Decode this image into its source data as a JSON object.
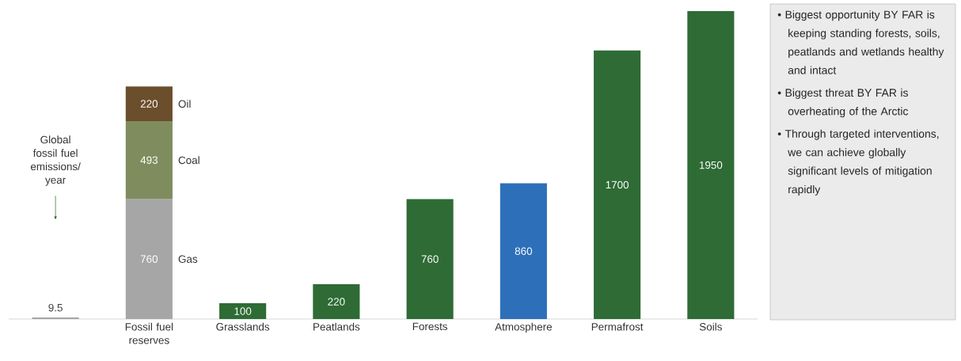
{
  "chart_data": {
    "type": "bar",
    "stacked": true,
    "data_labels": true,
    "categories": [
      null,
      "Fossil fuel reserves",
      "Grasslands",
      "Peatlands",
      "Forests",
      "Atmosphere",
      "Permafrost",
      "Soils"
    ],
    "series": [
      {
        "colors": [
          "#a6a6a6",
          null,
          "#2e6b35",
          "#2e6b35",
          "#2e6b35",
          "#2e6fba",
          "#2e6b35",
          "#2e6b35"
        ],
        "values": [
          9.5,
          null,
          100,
          220,
          760,
          860,
          1700,
          1950
        ]
      },
      {
        "name": "Gas",
        "color": "#a6a6a6",
        "values": [
          null,
          760,
          null,
          null,
          null,
          null,
          null,
          null
        ]
      },
      {
        "name": "Coal",
        "color": "#7f8c5e",
        "values": [
          null,
          493,
          null,
          null,
          null,
          null,
          null,
          null
        ]
      },
      {
        "name": "Oil",
        "color": "#6b4e2b",
        "values": [
          null,
          220,
          null,
          null,
          null,
          null,
          null,
          null
        ]
      }
    ],
    "annotations": [
      "Global fossil fuel emissions/ year",
      "• Biggest opportunity BY FAR is keeping standing forests, soils, peatlands and wetlands healthy and intact",
      "• Biggest threat BY FAR is overheating of the Arctic",
      "• Through targeted interventions, we can achieve globally significant levels of mitigation rapidly"
    ]
  }
}
